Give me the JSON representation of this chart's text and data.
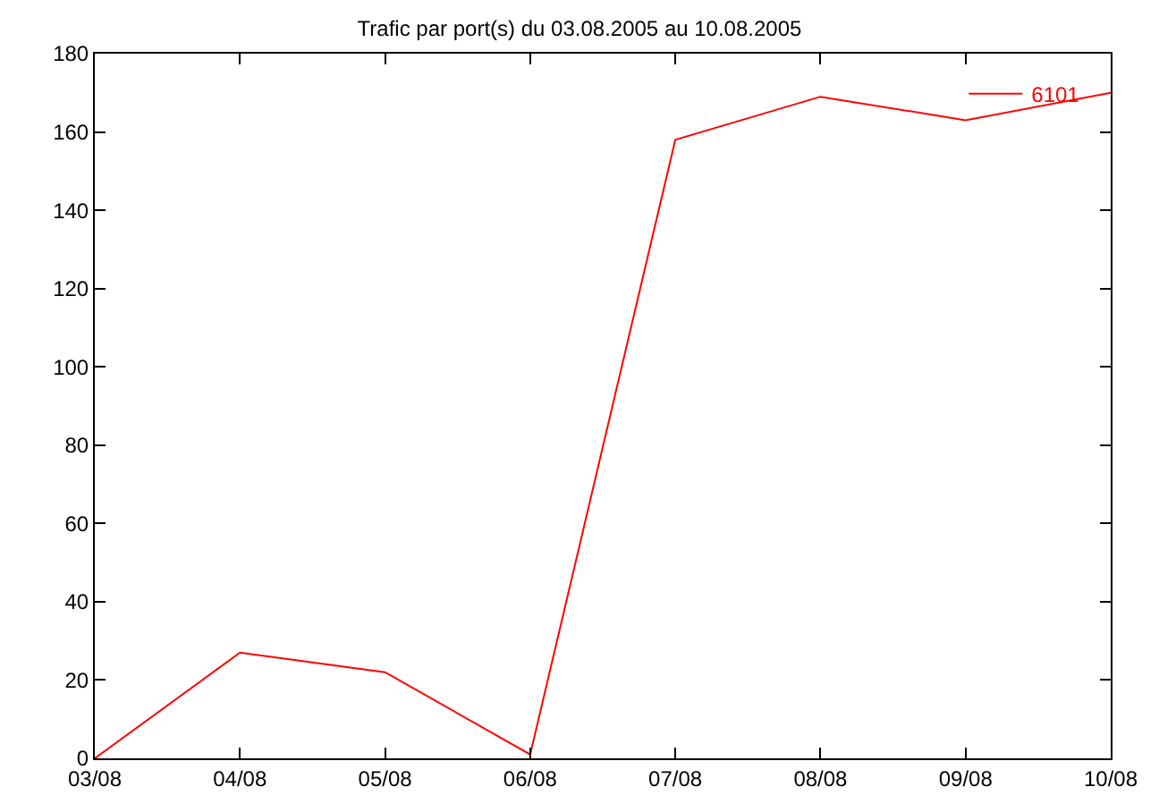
{
  "chart_data": {
    "type": "line",
    "title": "Trafic par port(s) du 03.08.2005 au 10.08.2005",
    "categories": [
      "03/08",
      "04/08",
      "05/08",
      "06/08",
      "07/08",
      "08/08",
      "09/08",
      "10/08"
    ],
    "series": [
      {
        "name": "6101",
        "color": "#ff0000",
        "values": [
          0,
          27,
          22,
          1,
          158,
          169,
          163,
          170
        ]
      }
    ],
    "ylim": [
      0,
      180
    ],
    "yticks": [
      0,
      20,
      40,
      60,
      80,
      100,
      120,
      140,
      160,
      180
    ],
    "grid": false,
    "legend": "top right",
    "marker": "none",
    "line_style": "solid"
  }
}
